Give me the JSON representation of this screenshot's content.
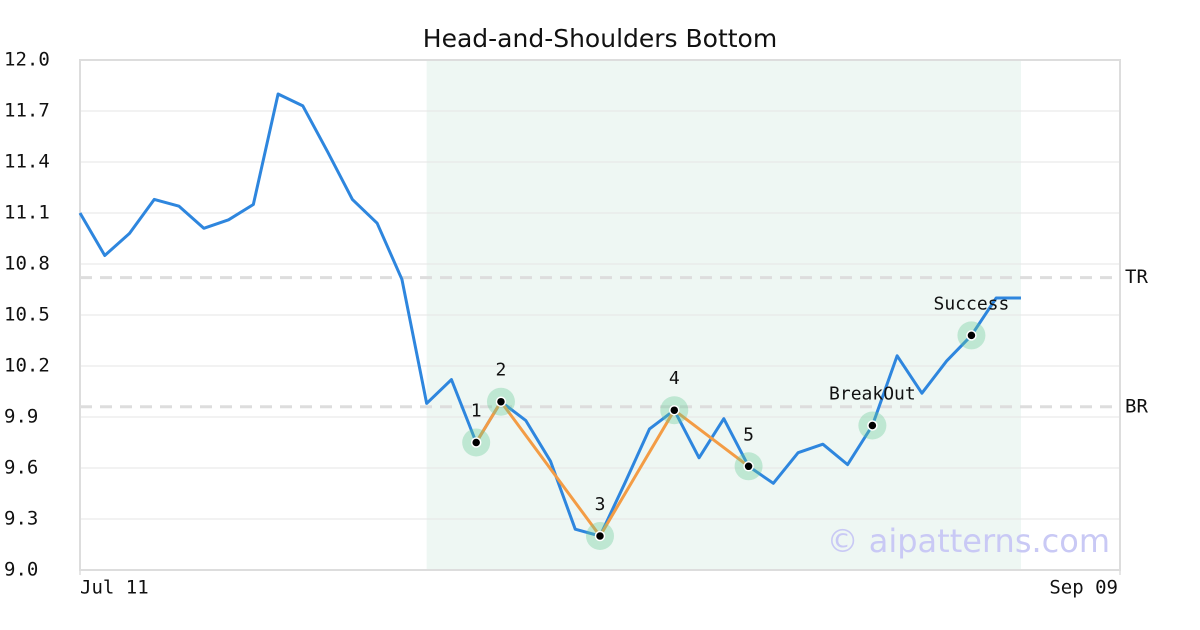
{
  "chart_data": {
    "type": "line",
    "title": "Head-and-Shoulders Bottom",
    "x": [
      0,
      1,
      2,
      3,
      4,
      5,
      6,
      7,
      8,
      9,
      10,
      11,
      12,
      13,
      14,
      15,
      16,
      17,
      18,
      19,
      20,
      21,
      22,
      23,
      24,
      25,
      26,
      27,
      28,
      29,
      30,
      31,
      32,
      33,
      34,
      35,
      36,
      37,
      38
    ],
    "values": [
      11.1,
      10.85,
      10.98,
      11.18,
      11.14,
      11.01,
      11.06,
      11.15,
      11.8,
      11.73,
      11.46,
      11.18,
      11.04,
      10.71,
      9.98,
      10.12,
      9.75,
      9.99,
      9.88,
      9.64,
      9.24,
      9.2,
      9.51,
      9.83,
      9.94,
      9.66,
      9.89,
      9.61,
      9.51,
      9.69,
      9.74,
      9.62,
      9.85,
      10.26,
      10.04,
      10.23,
      10.38,
      10.6,
      10.6
    ],
    "color": "#2e86de",
    "xlim": [
      0,
      42
    ],
    "xticks": [
      {
        "value": 0,
        "label": "Jul 11"
      },
      {
        "value": 42,
        "label": "Sep 09"
      }
    ],
    "ylim": [
      9.0,
      12.0
    ],
    "yticks": [
      {
        "value": 9.0,
        "label": "9.0"
      },
      9.3,
      9.6,
      9.9,
      10.2,
      10.5,
      10.8,
      11.1,
      11.4,
      11.7,
      {
        "value": 12.0,
        "label": "12.0"
      }
    ],
    "grid": true,
    "highlight": [
      14,
      38
    ],
    "pattern": {
      "x": [
        16,
        17,
        21,
        24,
        27
      ],
      "values": [
        9.75,
        9.99,
        9.2,
        9.94,
        9.61
      ],
      "labels": [
        "1",
        "2",
        "3",
        "4",
        "5"
      ],
      "color": "#f39c45"
    },
    "signals": {
      "x": [
        32,
        36
      ],
      "values": [
        9.85,
        10.38
      ],
      "labels": [
        "BreakOut",
        "Success"
      ]
    },
    "levels": [
      {
        "label": "TR",
        "value": 10.72
      },
      {
        "label": "BR",
        "value": 9.96
      }
    ],
    "watermark": "© aipatterns.com"
  }
}
